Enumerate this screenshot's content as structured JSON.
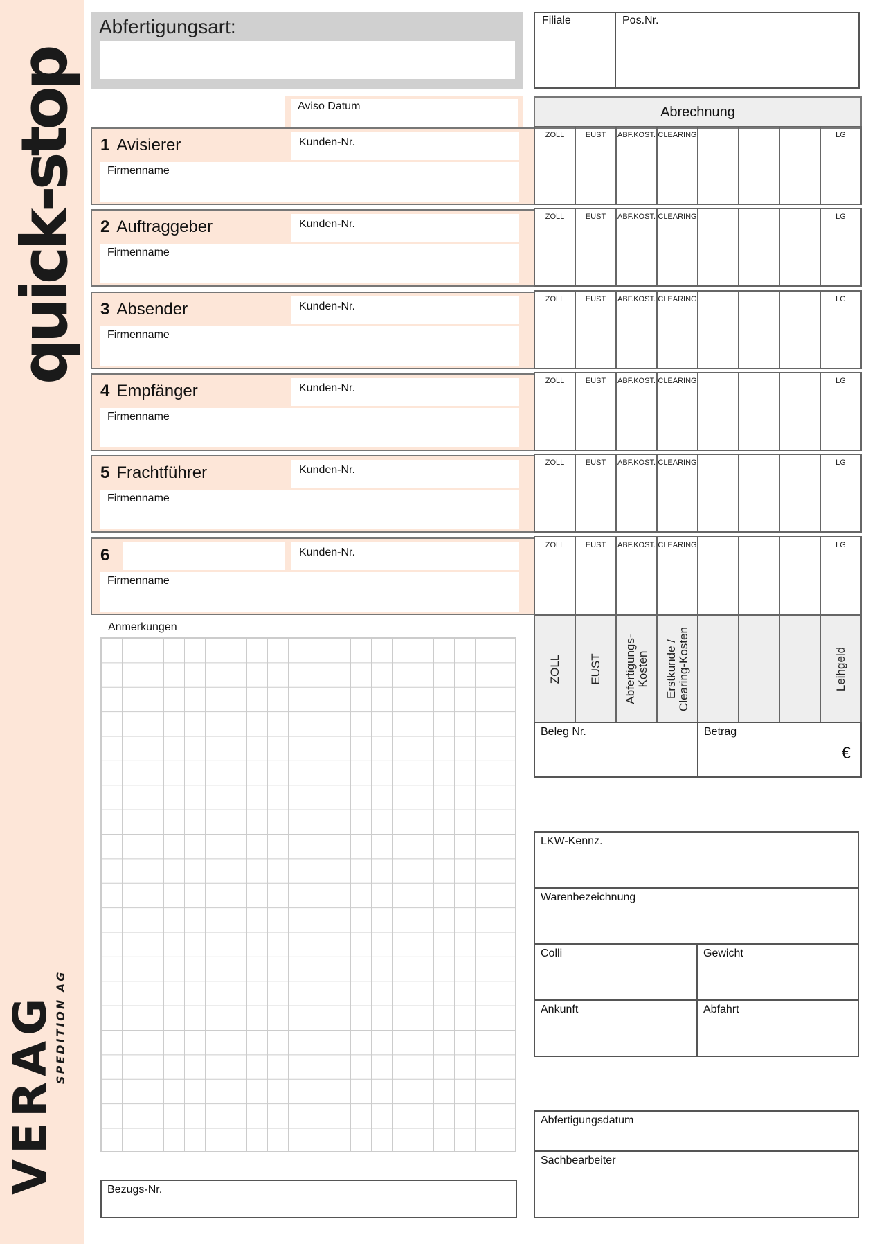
{
  "sidebar": {
    "product": "quick-stop",
    "logo": "VERAG",
    "logo_sub": "SPEDITION AG"
  },
  "header": {
    "abfertigungsart": "Abfertigungsart:",
    "filiale": "Filiale",
    "pos_nr": "Pos.Nr.",
    "aviso_datum": "Aviso Datum",
    "abrechnung": "Abrechnung"
  },
  "sections": [
    {
      "num": "1",
      "title": "Avisierer",
      "kunden": "Kunden-Nr.",
      "firma": "Firmenname"
    },
    {
      "num": "2",
      "title": "Auftraggeber",
      "kunden": "Kunden-Nr.",
      "firma": "Firmenname"
    },
    {
      "num": "3",
      "title": "Absender",
      "kunden": "Kunden-Nr.",
      "firma": "Firmenname"
    },
    {
      "num": "4",
      "title": "Empfänger",
      "kunden": "Kunden-Nr.",
      "firma": "Firmenname"
    },
    {
      "num": "5",
      "title": "Frachtführer",
      "kunden": "Kunden-Nr.",
      "firma": "Firmenname"
    },
    {
      "num": "6",
      "title": "",
      "kunden": "Kunden-Nr.",
      "firma": "Firmenname"
    }
  ],
  "cost_cols": [
    "ZOLL",
    "EUST",
    "ABF.KOST.",
    "CLEARING",
    "",
    "",
    "",
    "LG"
  ],
  "cost_headers": [
    "ZOLL",
    "EUST",
    "Abfertigungs-\nKosten",
    "Erstkunde /\nClearing-Kosten",
    "",
    "",
    "",
    "Leihgeld"
  ],
  "beleg_nr": "Beleg Nr.",
  "betrag": "Betrag",
  "currency": "€",
  "anmerkungen": "Anmerkungen",
  "bezugs_nr": "Bezugs-Nr.",
  "fields": {
    "lkw": "LKW-Kennz.",
    "waren": "Warenbezeichnung",
    "colli": "Colli",
    "gewicht": "Gewicht",
    "ankunft": "Ankunft",
    "abfahrt": "Abfahrt",
    "abf_datum": "Abfertigungsdatum",
    "sachbearbeiter": "Sachbearbeiter"
  },
  "colors": {
    "peach": "#fde6d8",
    "gray": "#d0d0d0",
    "line": "#555555"
  }
}
